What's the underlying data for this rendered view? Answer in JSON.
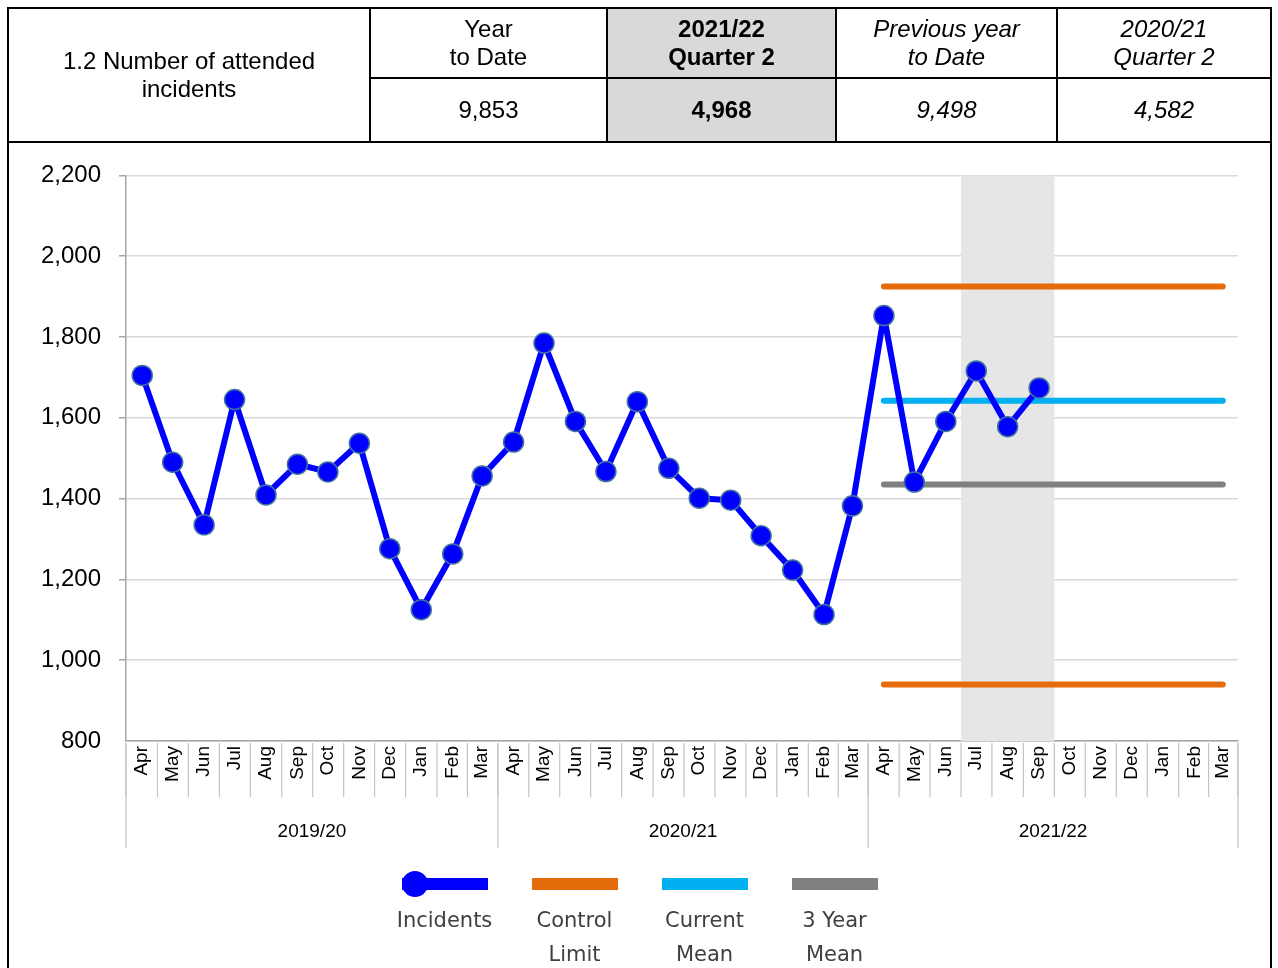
{
  "chart_data": [
    {
      "type": "other",
      "title": "1.2 Number of attended incidents",
      "categories": [
        "Year\nto Date",
        "2021/22\nQuarter 2",
        "Previous year\nto Date",
        "2020/21\nQuarter 2"
      ],
      "values": [
        9853,
        4968,
        9498,
        4582
      ],
      "value_labels": [
        "9,853",
        "4,968",
        "9,498",
        "4,582"
      ]
    },
    {
      "type": "line",
      "x": [
        "2019-04",
        "2019-05",
        "2019-06",
        "2019-07",
        "2019-08",
        "2019-09",
        "2019-10",
        "2019-11",
        "2019-12",
        "2020-01",
        "2020-02",
        "2020-03",
        "2020-04",
        "2020-05",
        "2020-06",
        "2020-07",
        "2020-08",
        "2020-09",
        "2020-10",
        "2020-11",
        "2020-12",
        "2021-01",
        "2021-02",
        "2021-03",
        "2021-04",
        "2021-05",
        "2021-06",
        "2021-07",
        "2021-08",
        "2021-09",
        "2021-10",
        "2021-11",
        "2021-12",
        "2022-01",
        "2022-02",
        "2022-03"
      ],
      "xlim": [
        "2019-03-16",
        "2022-03-16"
      ],
      "xticks": [
        {
          "value": "2019-04",
          "label": "Apr"
        },
        {
          "value": "2019-05",
          "label": "May"
        },
        {
          "value": "2019-06",
          "label": "Jun"
        },
        {
          "value": "2019-07",
          "label": "Jul"
        },
        {
          "value": "2019-08",
          "label": "Aug"
        },
        {
          "value": "2019-09",
          "label": "Sep"
        },
        {
          "value": "2019-10",
          "label": "Oct"
        },
        {
          "value": "2019-11",
          "label": "Nov"
        },
        {
          "value": "2019-12",
          "label": "Dec"
        },
        {
          "value": "2020-01",
          "label": "Jan"
        },
        {
          "value": "2020-02",
          "label": "Feb"
        },
        {
          "value": "2020-03",
          "label": "Mar"
        },
        {
          "value": "2020-04",
          "label": "Apr"
        },
        {
          "value": "2020-05",
          "label": "May"
        },
        {
          "value": "2020-06",
          "label": "Jun"
        },
        {
          "value": "2020-07",
          "label": "Jul"
        },
        {
          "value": "2020-08",
          "label": "Aug"
        },
        {
          "value": "2020-09",
          "label": "Sep"
        },
        {
          "value": "2020-10",
          "label": "Oct"
        },
        {
          "value": "2020-11",
          "label": "Nov"
        },
        {
          "value": "2020-12",
          "label": "Dec"
        },
        {
          "value": "2021-01",
          "label": "Jan"
        },
        {
          "value": "2021-02",
          "label": "Feb"
        },
        {
          "value": "2021-03",
          "label": "Mar"
        },
        {
          "value": "2021-04",
          "label": "Apr"
        },
        {
          "value": "2021-05",
          "label": "May"
        },
        {
          "value": "2021-06",
          "label": "Jun"
        },
        {
          "value": "2021-07",
          "label": "Jul"
        },
        {
          "value": "2021-08",
          "label": "Aug"
        },
        {
          "value": "2021-09",
          "label": "Sep"
        },
        {
          "value": "2021-10",
          "label": "Oct"
        },
        {
          "value": "2021-11",
          "label": "Nov"
        },
        {
          "value": "2021-12",
          "label": "Dec"
        },
        {
          "value": "2022-01",
          "label": "Jan"
        },
        {
          "value": "2022-02",
          "label": "Feb"
        },
        {
          "value": "2022-03",
          "label": "Mar"
        }
      ],
      "ylim": [
        800,
        2200
      ],
      "yticks": [
        800,
        {
          "value": 1000,
          "label": "1,000"
        },
        {
          "value": 1200,
          "label": "1,200"
        },
        {
          "value": 1400,
          "label": "1,400"
        },
        {
          "value": 1600,
          "label": "1,600"
        },
        {
          "value": 1800,
          "label": "1,800"
        },
        {
          "value": 2000,
          "label": "2,000"
        },
        {
          "value": 2200,
          "label": "2,200"
        }
      ],
      "series": [
        {
          "name": "Incidents",
          "color": "#0000ff",
          "marker": "circle",
          "values": [
            1705,
            1490,
            1335,
            1645,
            1409,
            1485,
            1466,
            1537,
            1276,
            1125,
            1263,
            1456,
            1540,
            1785,
            1591,
            1467,
            1640,
            1475,
            1401,
            1396,
            1308,
            1223,
            1113,
            1382,
            1853,
            1441,
            1591,
            1716,
            1578,
            1674,
            null,
            null,
            null,
            null,
            null,
            null
          ]
        },
        {
          "name": "Control Limit",
          "color": "#e46c0a",
          "values": [
            null,
            null,
            null,
            null,
            null,
            null,
            null,
            null,
            null,
            null,
            null,
            null,
            null,
            null,
            null,
            null,
            null,
            null,
            null,
            null,
            null,
            null,
            null,
            null,
            1925,
            1925,
            1925,
            1925,
            1925,
            1925,
            1925,
            1925,
            1925,
            1925,
            1925,
            1925
          ]
        },
        {
          "color": "#e46c0a",
          "values": [
            null,
            null,
            null,
            null,
            null,
            null,
            null,
            null,
            null,
            null,
            null,
            null,
            null,
            null,
            null,
            null,
            null,
            null,
            null,
            null,
            null,
            null,
            null,
            null,
            940,
            940,
            940,
            940,
            940,
            940,
            940,
            940,
            940,
            940,
            940,
            940
          ]
        },
        {
          "name": "Current Mean",
          "color": "#00b0f0",
          "values": [
            null,
            null,
            null,
            null,
            null,
            null,
            null,
            null,
            null,
            null,
            null,
            null,
            null,
            null,
            null,
            null,
            null,
            null,
            null,
            null,
            null,
            null,
            null,
            null,
            1642,
            1642,
            1642,
            1642,
            1642,
            1642,
            1642,
            1642,
            1642,
            1642,
            1642,
            1642
          ]
        },
        {
          "name": "3 Year Mean",
          "color": "#808080",
          "values": [
            null,
            null,
            null,
            null,
            null,
            null,
            null,
            null,
            null,
            null,
            null,
            null,
            null,
            null,
            null,
            null,
            null,
            null,
            null,
            null,
            null,
            null,
            null,
            null,
            1435,
            1435,
            1435,
            1435,
            1435,
            1435,
            1435,
            1435,
            1435,
            1435,
            1435,
            1435
          ]
        }
      ],
      "bands": [
        {
          "axis": "x",
          "from": "2021-06-16",
          "to": "2021-09-16",
          "color": "#e6e6e6"
        }
      ],
      "annotations": [
        "2019/20",
        "2020/21",
        "2021/22"
      ],
      "grid": "y",
      "legend": "bottom"
    }
  ]
}
